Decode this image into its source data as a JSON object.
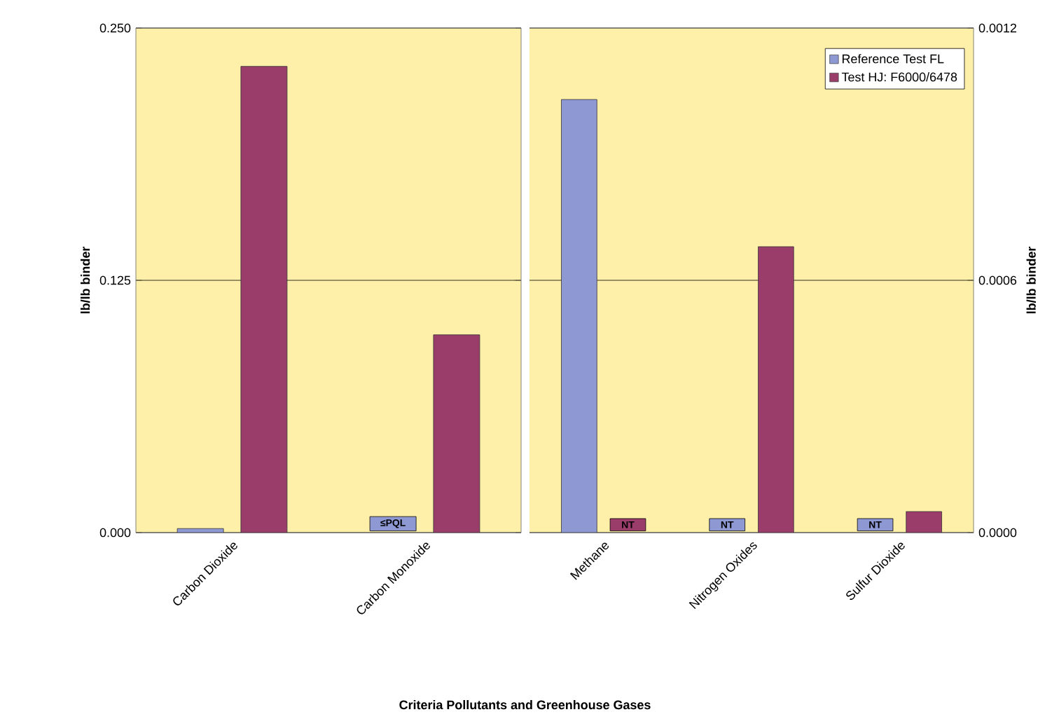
{
  "chart_data": [
    {
      "type": "bar",
      "categories": [
        "Carbon Dioxide",
        "Carbon Monoxide"
      ],
      "xlabel": "Criteria Pollutants and Greenhouse Gases",
      "ylabel": "lb/lb binder",
      "ylim": [
        0,
        0.25
      ],
      "yticks": [
        {
          "value": 0,
          "label": "0.000"
        },
        {
          "value": 0.125,
          "label": "0.125"
        },
        {
          "value": 0.25,
          "label": "0.250"
        }
      ],
      "grid": "y",
      "series": [
        {
          "color": "#8e99d4",
          "values": [
            0.002,
            null
          ],
          "value_labels": [
            null,
            "≤PQL"
          ]
        },
        {
          "color": "#9b3d6b",
          "values": [
            0.231,
            0.098
          ]
        }
      ]
    },
    {
      "type": "bar",
      "categories": [
        "Methane",
        "Nitrogen Oxides",
        "Sulfur Dioxide"
      ],
      "ylabel": "lb/lb binder",
      "ylim": [
        0,
        0.0012
      ],
      "yticks": [
        {
          "value": 0,
          "label": "0.0000"
        },
        {
          "value": 0.0006,
          "label": "0.0006"
        },
        {
          "value": 0.0012,
          "label": "0.0012"
        }
      ],
      "grid": "y",
      "legend": "top right",
      "series": [
        {
          "name": "Reference Test FL",
          "color": "#8e99d4",
          "values": [
            0.00103,
            null,
            null
          ],
          "value_labels": [
            null,
            "NT",
            "NT"
          ]
        },
        {
          "name": "Test HJ: F6000/6478",
          "color": "#9b3d6b",
          "values": [
            null,
            0.00068,
            5e-05
          ],
          "value_labels": [
            "NT",
            null,
            null
          ]
        }
      ]
    }
  ]
}
